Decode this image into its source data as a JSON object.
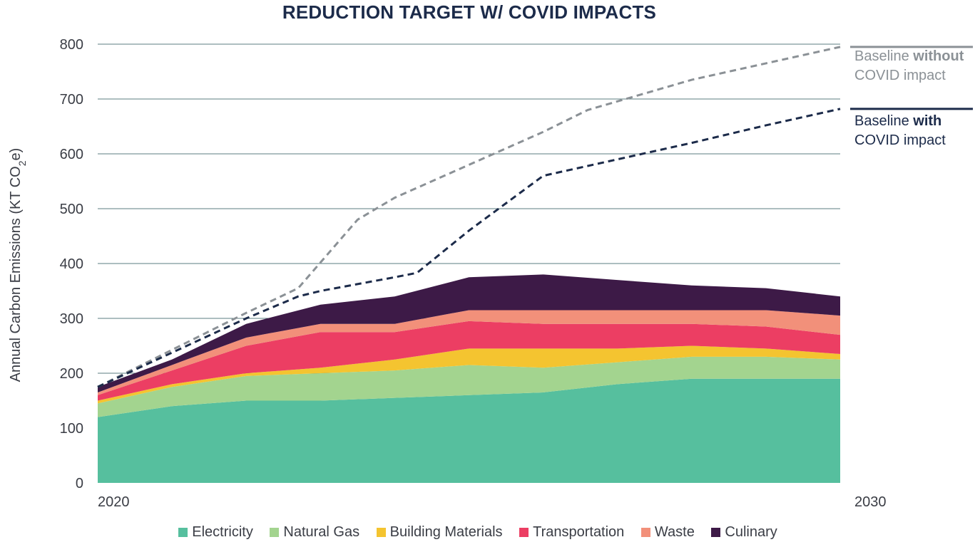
{
  "chart_data": {
    "type": "area",
    "title": "REDUCTION TARGET W/ COVID IMPACTS",
    "ylabel_main": "Annual Carbon Emissions (KT CO",
    "ylabel_sub": "2",
    "ylabel_end": "e)",
    "x_axis_labels": [
      "2020",
      "2030"
    ],
    "ylim": [
      0,
      800
    ],
    "y_ticks": [
      "0",
      "100",
      "200",
      "300",
      "400",
      "500",
      "600",
      "700",
      "800"
    ],
    "grid": true,
    "stacked": true,
    "x": [
      2020,
      2021,
      2022,
      2023,
      2024,
      2025,
      2026,
      2027,
      2028,
      2029,
      2030
    ],
    "series": [
      {
        "name": "Electricity",
        "color": "#56bf9e",
        "values": [
          120,
          140,
          150,
          150,
          155,
          160,
          165,
          180,
          190,
          190,
          190
        ]
      },
      {
        "name": "Natural Gas",
        "color": "#a3d48f",
        "values": [
          25,
          35,
          45,
          50,
          50,
          55,
          45,
          40,
          40,
          40,
          35
        ]
      },
      {
        "name": "Building Materials",
        "color": "#f4c430",
        "values": [
          5,
          5,
          5,
          10,
          20,
          30,
          35,
          25,
          20,
          15,
          10
        ]
      },
      {
        "name": "Transportation",
        "color": "#ec3e63",
        "values": [
          10,
          25,
          50,
          65,
          50,
          50,
          45,
          45,
          40,
          40,
          35
        ]
      },
      {
        "name": "Waste",
        "color": "#f2907a",
        "values": [
          5,
          10,
          15,
          15,
          15,
          20,
          25,
          25,
          25,
          30,
          35
        ]
      },
      {
        "name": "Culinary",
        "color": "#3d1a47",
        "values": [
          10,
          10,
          25,
          35,
          50,
          60,
          65,
          55,
          45,
          40,
          35
        ]
      }
    ],
    "baselines": [
      {
        "label_pre": "Baseline ",
        "label_bold": "without",
        "label_post": "COVID impact",
        "color": "#8b9196",
        "x": [
          2020,
          2022,
          2022.7,
          2023.5,
          2024,
          2025,
          2026,
          2026.6,
          2028,
          2029,
          2030
        ],
        "values": [
          175,
          310,
          355,
          480,
          520,
          580,
          640,
          680,
          735,
          765,
          795
        ]
      },
      {
        "label_pre": "Baseline ",
        "label_bold": "with",
        "label_post": "COVID impact",
        "color": "#1c2b4a",
        "x": [
          2020,
          2022,
          2022.7,
          2023,
          2024,
          2024.3,
          2025,
          2026,
          2028,
          2029,
          2030
        ],
        "values": [
          175,
          300,
          340,
          350,
          375,
          383,
          460,
          560,
          620,
          652,
          682
        ]
      }
    ]
  }
}
